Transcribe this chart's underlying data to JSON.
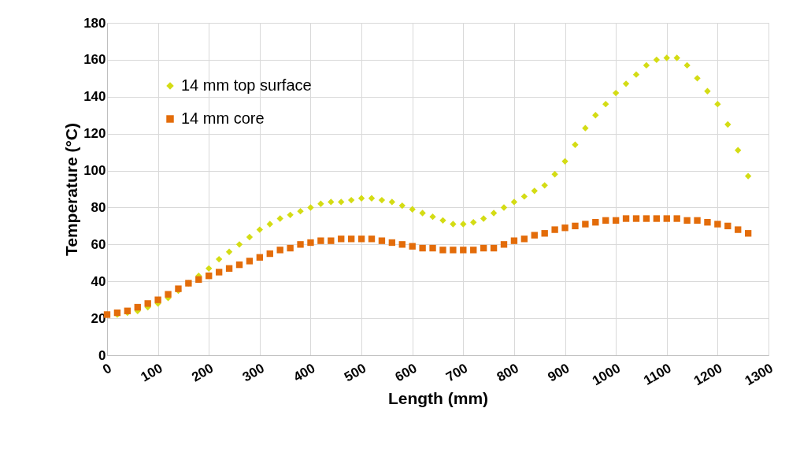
{
  "chart_data": {
    "type": "scatter",
    "xlabel": "Length (mm)",
    "ylabel": "Temperature (°C)",
    "xlim": [
      0,
      1300
    ],
    "xticks": [
      0,
      100,
      200,
      300,
      400,
      500,
      600,
      700,
      800,
      900,
      1000,
      1100,
      1200,
      1300
    ],
    "ylim": [
      0,
      180
    ],
    "yticks": [
      0,
      20,
      40,
      60,
      80,
      100,
      120,
      140,
      160,
      180
    ],
    "grid": true,
    "legend": "top left",
    "x": [
      0,
      20,
      40,
      60,
      80,
      100,
      120,
      140,
      160,
      180,
      200,
      220,
      240,
      260,
      280,
      300,
      320,
      340,
      360,
      380,
      400,
      420,
      440,
      460,
      480,
      500,
      520,
      540,
      560,
      580,
      600,
      620,
      640,
      660,
      680,
      700,
      720,
      740,
      760,
      780,
      800,
      820,
      840,
      860,
      880,
      900,
      920,
      940,
      960,
      980,
      1000,
      1020,
      1040,
      1060,
      1080,
      1100,
      1120,
      1140,
      1160,
      1180,
      1200,
      1220,
      1240,
      1260
    ],
    "series": [
      {
        "name": "14 mm  top surface",
        "color": "#d4dc14",
        "marker": "diamond",
        "values": [
          22,
          22,
          23,
          24,
          26,
          28,
          31,
          35,
          39,
          43,
          47,
          52,
          56,
          60,
          64,
          68,
          71,
          74,
          76,
          78,
          80,
          82,
          83,
          83,
          84,
          85,
          85,
          84,
          83,
          81,
          79,
          77,
          75,
          73,
          71,
          71,
          72,
          74,
          77,
          80,
          83,
          86,
          89,
          92,
          98,
          105,
          114,
          123,
          130,
          136,
          142,
          147,
          152,
          157,
          160,
          161,
          161,
          157,
          150,
          143,
          136,
          125,
          111,
          97
        ]
      },
      {
        "name": "14 mm core",
        "color": "#e36c0a",
        "marker": "square",
        "values": [
          22,
          23,
          24,
          26,
          28,
          30,
          33,
          36,
          39,
          41,
          43,
          45,
          47,
          49,
          51,
          53,
          55,
          57,
          58,
          60,
          61,
          62,
          62,
          63,
          63,
          63,
          63,
          62,
          61,
          60,
          59,
          58,
          58,
          57,
          57,
          57,
          57,
          58,
          58,
          60,
          62,
          63,
          65,
          66,
          68,
          69,
          70,
          71,
          72,
          73,
          73,
          74,
          74,
          74,
          74,
          74,
          74,
          73,
          73,
          72,
          71,
          70,
          68,
          66
        ]
      }
    ]
  }
}
